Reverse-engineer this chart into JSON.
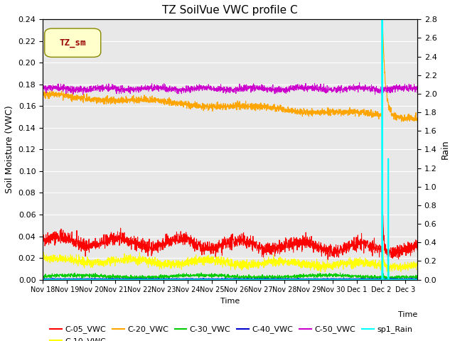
{
  "title": "TZ SoilVue VWC profile C",
  "xlabel": "Time",
  "ylabel_left": "Soil Moisture (VWC)",
  "ylabel_right": "Rain",
  "ylim_left": [
    0.0,
    0.24
  ],
  "ylim_right": [
    0.0,
    2.8
  ],
  "x_tick_labels": [
    "Nov 18",
    "Nov 19",
    "Nov 20",
    "Nov 21",
    "Nov 22",
    "Nov 23",
    "Nov 24",
    "Nov 25",
    "Nov 26",
    "Nov 27",
    "Nov 28",
    "Nov 29",
    "Nov 30",
    "Dec 1",
    "Dec 2",
    "Dec 3"
  ],
  "background_color": "#e8e8e8",
  "legend_box_color": "#ffffcc",
  "legend_box_text": "TZ_sm",
  "legend_box_text_color": "#990000",
  "series_colors": {
    "C-05_VWC": "#ff0000",
    "C-10_VWC": "#ffff00",
    "C-20_VWC": "#ffa500",
    "C-30_VWC": "#00cc00",
    "C-40_VWC": "#0000cc",
    "C-50_VWC": "#cc00cc",
    "sp1_Rain": "#00ffff"
  },
  "num_points": 2300,
  "yticks_left": [
    0.0,
    0.02,
    0.04,
    0.06,
    0.08,
    0.1,
    0.12,
    0.14,
    0.16,
    0.18,
    0.2,
    0.22,
    0.24
  ],
  "yticks_right": [
    0.0,
    0.2,
    0.4,
    0.6,
    0.8,
    1.0,
    1.2,
    1.4,
    1.6,
    1.8,
    2.0,
    2.2,
    2.4,
    2.6,
    2.8
  ]
}
